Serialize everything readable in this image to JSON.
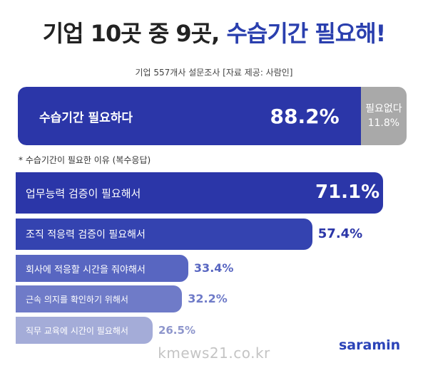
{
  "header": {
    "title_part1": "기업 10곳 중 9곳, ",
    "title_part2": "수습기간 필요해!",
    "subtitle": "기업 557개사 설문조사 [자료 제공: 사람인]"
  },
  "summary": {
    "yes_label": "수습기간 필요하다",
    "yes_value": "88.2%",
    "yes_pct": 88.2,
    "no_label": "필요없다",
    "no_value": "11.8%",
    "no_pct": 11.8
  },
  "note": "* 수습기간이 필요한 이유 (복수응답)",
  "chart_data": {
    "type": "bar",
    "orientation": "horizontal",
    "categories": [
      "업무능력 검증이 필요해서",
      "조직 적응력 검증이 필요해서",
      "회사에 적응할 시간을 줘야해서",
      "근속 의지를 확인하기 위해서",
      "직무 교육에 시간이 필요해서"
    ],
    "values": [
      71.1,
      57.4,
      33.4,
      32.2,
      26.5
    ],
    "value_labels": [
      "71.1%",
      "57.4%",
      "33.4%",
      "32.2%",
      "26.5%"
    ],
    "colors": [
      "#2b36a8",
      "#3443b0",
      "#5866c1",
      "#6f7bc8",
      "#a4acd8"
    ]
  },
  "logo": "saramin",
  "watermark": "kmews21.co.kr"
}
